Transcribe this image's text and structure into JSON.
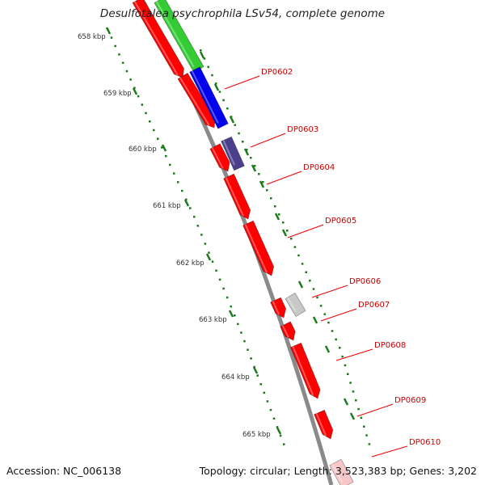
{
  "title": "Desulfotalea psychrophila LSv54, complete genome",
  "accession": "Accession: NC_006138",
  "summary": "Topology: circular; Length: 3,523,383 bp; Genes: 3,202",
  "tick_labels": [
    "658 kbp",
    "659 kbp",
    "660 kbp",
    "661 kbp",
    "662 kbp",
    "663 kbp",
    "664 kbp",
    "665 kbp"
  ],
  "gene_labels": [
    "DP0602",
    "DP0603",
    "DP0604",
    "DP0605",
    "DP0606",
    "DP0607",
    "DP0608",
    "DP0609",
    "DP0610"
  ],
  "colors": {
    "backbone": "#8a8a8a",
    "forward_strand": "#ff0000",
    "label_text": "#cc0000",
    "leader_line": "#ee0000",
    "ticks": "#1a7a1a",
    "green_feature": "#33cc33",
    "blue_feature": "#0000ee",
    "purple_feature": "#4b3f8c",
    "gray_feature": "#c8c8c8",
    "pink_feature": "#f7c8c8"
  }
}
